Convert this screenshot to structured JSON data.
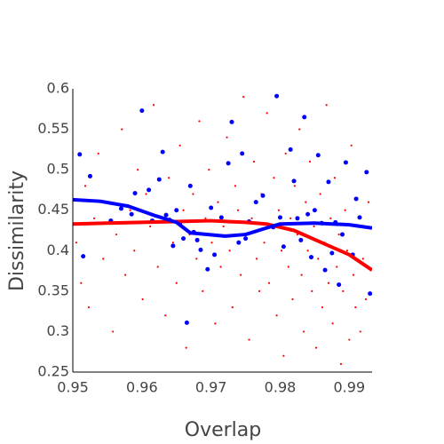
{
  "chart_data": {
    "type": "scatter",
    "x_label": "Overlap",
    "y_label": "Dissimilarity",
    "xlim": [
      0.95,
      0.9933
    ],
    "ylim": [
      0.25,
      0.6
    ],
    "xticks": [
      0.95,
      0.96,
      0.97,
      0.98,
      0.99
    ],
    "yticks": [
      0.25,
      0.3,
      0.35,
      0.4,
      0.45,
      0.5,
      0.55,
      0.6
    ],
    "grid": false,
    "series": [
      {
        "mode": "markers",
        "color": "#ff0000",
        "size": 1.1,
        "x": [
          0.9505,
          0.9512,
          0.9518,
          0.9523,
          0.9531,
          0.9537,
          0.9544,
          0.9552,
          0.9558,
          0.9563,
          0.9571,
          0.9576,
          0.9583,
          0.9589,
          0.9594,
          0.9601,
          0.9606,
          0.9612,
          0.9617,
          0.9623,
          0.9628,
          0.9634,
          0.9639,
          0.9645,
          0.965,
          0.9655,
          0.966,
          0.9664,
          0.9669,
          0.9674,
          0.9679,
          0.9683,
          0.9688,
          0.9692,
          0.9697,
          0.9701,
          0.9706,
          0.971,
          0.9714,
          0.9718,
          0.9723,
          0.9727,
          0.9731,
          0.9735,
          0.9739,
          0.9743,
          0.9747,
          0.9751,
          0.9755,
          0.9759,
          0.9762,
          0.9766,
          0.977,
          0.9773,
          0.9777,
          0.9781,
          0.9784,
          0.9788,
          0.9791,
          0.9795,
          0.9798,
          0.9802,
          0.9805,
          0.9808,
          0.9812,
          0.9815,
          0.9818,
          0.9821,
          0.9825,
          0.9828,
          0.9831,
          0.9834,
          0.9837,
          0.984,
          0.9843,
          0.9846,
          0.9849,
          0.9852,
          0.9855,
          0.9858,
          0.9861,
          0.9864,
          0.9867,
          0.987,
          0.9873,
          0.9876,
          0.9879,
          0.9882,
          0.9885,
          0.9888,
          0.9891,
          0.9894,
          0.9897,
          0.99,
          0.9903,
          0.9906,
          0.9909,
          0.9912,
          0.9916,
          0.992,
          0.9924,
          0.9928
        ],
        "values": [
          0.41,
          0.36,
          0.48,
          0.33,
          0.44,
          0.52,
          0.39,
          0.46,
          0.3,
          0.42,
          0.55,
          0.37,
          0.45,
          0.4,
          0.5,
          0.34,
          0.47,
          0.43,
          0.58,
          0.38,
          0.44,
          0.32,
          0.49,
          0.41,
          0.36,
          0.53,
          0.45,
          0.28,
          0.42,
          0.47,
          0.39,
          0.56,
          0.35,
          0.44,
          0.5,
          0.41,
          0.31,
          0.46,
          0.38,
          0.43,
          0.54,
          0.4,
          0.33,
          0.48,
          0.45,
          0.37,
          0.59,
          0.42,
          0.29,
          0.44,
          0.51,
          0.39,
          0.35,
          0.47,
          0.41,
          0.57,
          0.36,
          0.43,
          0.49,
          0.32,
          0.45,
          0.4,
          0.27,
          0.52,
          0.38,
          0.44,
          0.34,
          0.48,
          0.42,
          0.55,
          0.37,
          0.3,
          0.46,
          0.4,
          0.51,
          0.35,
          0.43,
          0.28,
          0.39,
          0.47,
          0.33,
          0.41,
          0.58,
          0.36,
          0.44,
          0.31,
          0.49,
          0.38,
          0.42,
          0.26,
          0.35,
          0.45,
          0.4,
          0.29,
          0.53,
          0.37,
          0.33,
          0.43,
          0.3,
          0.39,
          0.34,
          0.46
        ]
      },
      {
        "mode": "markers",
        "color": "#0000ff",
        "size": 2.5,
        "x": [
          0.951,
          0.9525,
          0.9515,
          0.9555,
          0.957,
          0.9585,
          0.959,
          0.96,
          0.961,
          0.9615,
          0.9625,
          0.963,
          0.9635,
          0.964,
          0.9645,
          0.965,
          0.9655,
          0.966,
          0.9665,
          0.967,
          0.9675,
          0.968,
          0.9685,
          0.9695,
          0.97,
          0.9705,
          0.9715,
          0.9725,
          0.973,
          0.974,
          0.9745,
          0.975,
          0.9755,
          0.9765,
          0.9775,
          0.979,
          0.9795,
          0.98,
          0.9805,
          0.9815,
          0.982,
          0.9825,
          0.983,
          0.9835,
          0.984,
          0.9845,
          0.985,
          0.9855,
          0.986,
          0.9865,
          0.987,
          0.9875,
          0.988,
          0.9885,
          0.989,
          0.9895,
          0.9905,
          0.991,
          0.9915,
          0.9925,
          0.993
        ],
        "values": [
          0.519,
          0.492,
          0.393,
          0.437,
          0.452,
          0.445,
          0.471,
          0.573,
          0.475,
          0.437,
          0.488,
          0.522,
          0.444,
          0.438,
          0.406,
          0.45,
          0.433,
          0.415,
          0.311,
          0.48,
          0.423,
          0.413,
          0.401,
          0.377,
          0.453,
          0.395,
          0.441,
          0.508,
          0.559,
          0.41,
          0.52,
          0.415,
          0.436,
          0.46,
          0.468,
          0.429,
          0.591,
          0.441,
          0.405,
          0.525,
          0.486,
          0.44,
          0.413,
          0.565,
          0.445,
          0.392,
          0.45,
          0.518,
          0.434,
          0.376,
          0.485,
          0.397,
          0.435,
          0.358,
          0.42,
          0.509,
          0.395,
          0.464,
          0.441,
          0.497,
          0.347
        ]
      },
      {
        "mode": "lines",
        "color": "#ff0000",
        "width": 4,
        "x": [
          0.95,
          0.955,
          0.96,
          0.965,
          0.97,
          0.975,
          0.978,
          0.982,
          0.986,
          0.99,
          0.9933
        ],
        "values": [
          0.433,
          0.434,
          0.435,
          0.436,
          0.437,
          0.435,
          0.433,
          0.425,
          0.41,
          0.395,
          0.376
        ]
      },
      {
        "mode": "lines",
        "color": "#0000ff",
        "width": 4,
        "x": [
          0.95,
          0.954,
          0.958,
          0.962,
          0.965,
          0.967,
          0.972,
          0.975,
          0.978,
          0.98,
          0.985,
          0.99,
          0.9933
        ],
        "values": [
          0.463,
          0.461,
          0.455,
          0.443,
          0.435,
          0.422,
          0.418,
          0.42,
          0.428,
          0.433,
          0.434,
          0.432,
          0.428
        ]
      }
    ]
  }
}
